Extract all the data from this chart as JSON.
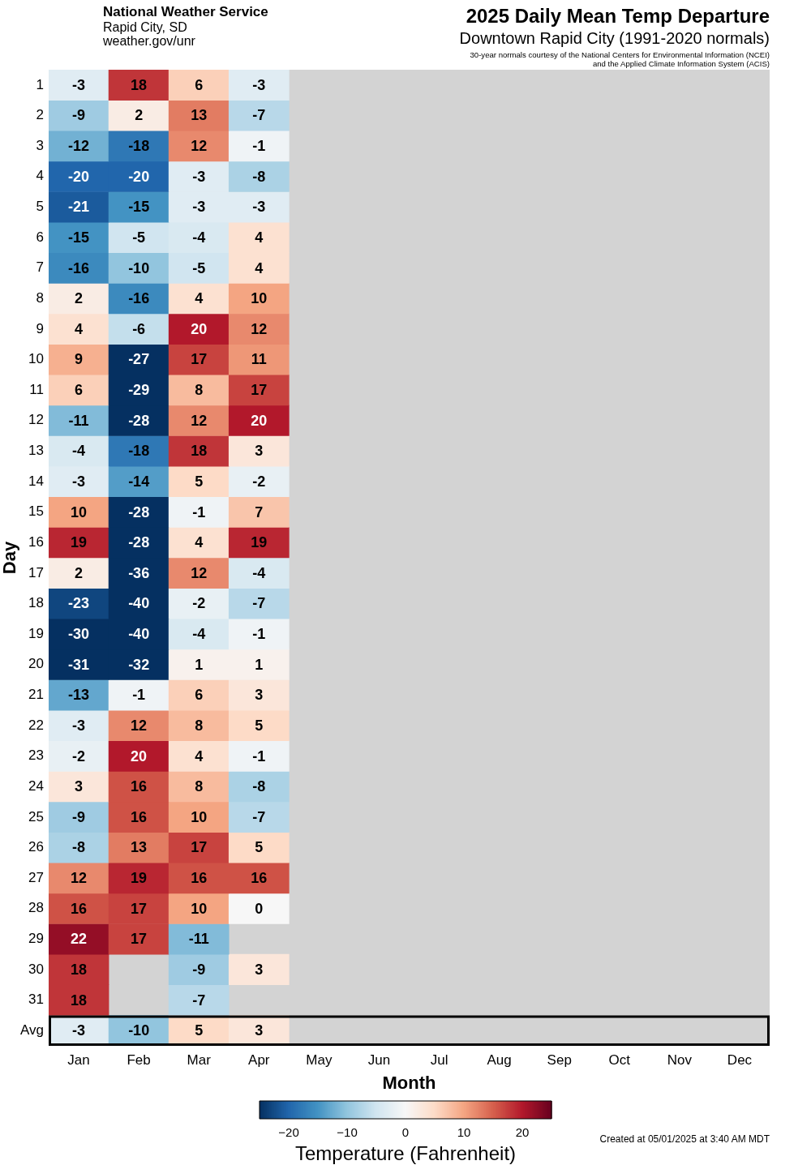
{
  "chart_data": {
    "type": "heatmap",
    "title": "2025 Daily Mean Temp Departure",
    "subtitle": "Downtown Rapid City (1991-2020 normals)",
    "xlabel": "Month",
    "ylabel": "Day",
    "clabel": "Temperature (Fahrenheit)",
    "annotations": [
      "National Weather Service",
      "Rapid City, SD",
      "weather.gov/unr",
      "30-year normals courtesy of the National Centers for Environmental Information (NCEI) and the Applied Climate Information System (ACIS)",
      "Created at 05/01/2025 at 3:40 AM MDT"
    ],
    "categories": [
      "Jan",
      "Feb",
      "Mar",
      "Apr",
      "May",
      "Jun",
      "Jul",
      "Aug",
      "Sep",
      "Oct",
      "Nov",
      "Dec"
    ],
    "y_categories": [
      "1",
      "2",
      "3",
      "4",
      "5",
      "6",
      "7",
      "8",
      "9",
      "10",
      "11",
      "12",
      "13",
      "14",
      "15",
      "16",
      "17",
      "18",
      "19",
      "20",
      "21",
      "22",
      "23",
      "24",
      "25",
      "26",
      "27",
      "28",
      "29",
      "30",
      "31",
      "Avg"
    ],
    "cells": [
      [
        -3,
        18,
        6,
        -3,
        null,
        null,
        null,
        null,
        null,
        null,
        null,
        null
      ],
      [
        -9,
        2,
        13,
        -7,
        null,
        null,
        null,
        null,
        null,
        null,
        null,
        null
      ],
      [
        -12,
        -18,
        12,
        -1,
        null,
        null,
        null,
        null,
        null,
        null,
        null,
        null
      ],
      [
        -20,
        -20,
        -3,
        -8,
        null,
        null,
        null,
        null,
        null,
        null,
        null,
        null
      ],
      [
        -21,
        -15,
        -3,
        -3,
        null,
        null,
        null,
        null,
        null,
        null,
        null,
        null
      ],
      [
        -15,
        -5,
        -4,
        4,
        null,
        null,
        null,
        null,
        null,
        null,
        null,
        null
      ],
      [
        -16,
        -10,
        -5,
        4,
        null,
        null,
        null,
        null,
        null,
        null,
        null,
        null
      ],
      [
        2,
        -16,
        4,
        10,
        null,
        null,
        null,
        null,
        null,
        null,
        null,
        null
      ],
      [
        4,
        -6,
        20,
        12,
        null,
        null,
        null,
        null,
        null,
        null,
        null,
        null
      ],
      [
        9,
        -27,
        17,
        11,
        null,
        null,
        null,
        null,
        null,
        null,
        null,
        null
      ],
      [
        6,
        -29,
        8,
        17,
        null,
        null,
        null,
        null,
        null,
        null,
        null,
        null
      ],
      [
        -11,
        -28,
        12,
        20,
        null,
        null,
        null,
        null,
        null,
        null,
        null,
        null
      ],
      [
        -4,
        -18,
        18,
        3,
        null,
        null,
        null,
        null,
        null,
        null,
        null,
        null
      ],
      [
        -3,
        -14,
        5,
        -2,
        null,
        null,
        null,
        null,
        null,
        null,
        null,
        null
      ],
      [
        10,
        -28,
        -1,
        7,
        null,
        null,
        null,
        null,
        null,
        null,
        null,
        null
      ],
      [
        19,
        -28,
        4,
        19,
        null,
        null,
        null,
        null,
        null,
        null,
        null,
        null
      ],
      [
        2,
        -36,
        12,
        -4,
        null,
        null,
        null,
        null,
        null,
        null,
        null,
        null
      ],
      [
        -23,
        -40,
        -2,
        -7,
        null,
        null,
        null,
        null,
        null,
        null,
        null,
        null
      ],
      [
        -30,
        -40,
        -4,
        -1,
        null,
        null,
        null,
        null,
        null,
        null,
        null,
        null
      ],
      [
        -31,
        -32,
        1,
        1,
        null,
        null,
        null,
        null,
        null,
        null,
        null,
        null
      ],
      [
        -13,
        -1,
        6,
        3,
        null,
        null,
        null,
        null,
        null,
        null,
        null,
        null
      ],
      [
        -3,
        12,
        8,
        5,
        null,
        null,
        null,
        null,
        null,
        null,
        null,
        null
      ],
      [
        -2,
        20,
        4,
        -1,
        null,
        null,
        null,
        null,
        null,
        null,
        null,
        null
      ],
      [
        3,
        16,
        8,
        -8,
        null,
        null,
        null,
        null,
        null,
        null,
        null,
        null
      ],
      [
        -9,
        16,
        10,
        -7,
        null,
        null,
        null,
        null,
        null,
        null,
        null,
        null
      ],
      [
        -8,
        13,
        17,
        5,
        null,
        null,
        null,
        null,
        null,
        null,
        null,
        null
      ],
      [
        12,
        19,
        16,
        16,
        null,
        null,
        null,
        null,
        null,
        null,
        null,
        null
      ],
      [
        16,
        17,
        10,
        0,
        null,
        null,
        null,
        null,
        null,
        null,
        null,
        null
      ],
      [
        22,
        17,
        -11,
        null,
        null,
        null,
        null,
        null,
        null,
        null,
        null,
        null
      ],
      [
        18,
        null,
        -9,
        3,
        null,
        null,
        null,
        null,
        null,
        null,
        null,
        null
      ],
      [
        18,
        null,
        -7,
        null,
        null,
        null,
        null,
        null,
        null,
        null,
        null,
        null
      ],
      [
        -3,
        -10,
        5,
        3,
        null,
        null,
        null,
        null,
        null,
        null,
        null,
        null
      ]
    ],
    "clim": [
      -25,
      25
    ],
    "cticks": [
      -20,
      -10,
      0,
      10,
      20
    ],
    "data_labels": true
  }
}
